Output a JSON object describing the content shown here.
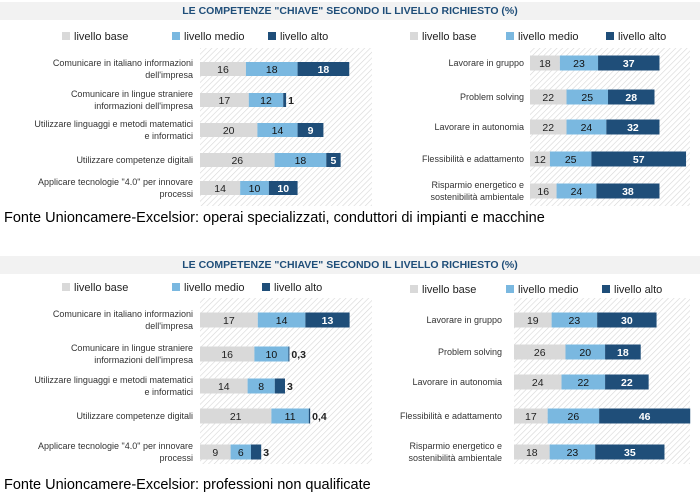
{
  "colors": {
    "base": "#d9d9d9",
    "medio": "#7ab8e0",
    "alto": "#1f4e79",
    "title": "#1f4e79",
    "title_bg": "#f2f2f2"
  },
  "legend_labels": [
    "livello base",
    "livello medio",
    "livello alto"
  ],
  "panels": [
    {
      "title": "LE COMPETENZE \"CHIAVE\" SECONDO IL LIVELLO RICHIESTO (%)",
      "source": "Fonte Unioncamere-Excelsior: operai specializzati, conduttori di impianti e macchine"
    },
    {
      "title": "LE COMPETENZE \"CHIAVE\" SECONDO IL LIVELLO RICHIESTO (%)",
      "source": "Fonte Unioncamere-Excelsior: professioni non qualificate"
    }
  ],
  "chart_data": [
    {
      "type": "bar",
      "orientation": "horizontal",
      "stacked": true,
      "legend": "top",
      "categories": [
        [
          "Comunicare in italiano informazioni",
          "dell'impresa"
        ],
        [
          "Comunicare in lingue straniere",
          "informazioni dell'impresa"
        ],
        [
          "Utilizzare linguaggi e metodi matematici",
          "e informatici"
        ],
        [
          "Utilizzare competenze digitali"
        ],
        [
          "Applicare tecnologie \"4.0\" per innovare",
          "processi"
        ]
      ],
      "series": [
        {
          "name": "livello base",
          "values": [
            16,
            17,
            20,
            26,
            14
          ],
          "labels": [
            "16",
            "17",
            "20",
            "26",
            "14"
          ]
        },
        {
          "name": "livello medio",
          "values": [
            18,
            12,
            14,
            18,
            10
          ],
          "labels": [
            "18",
            "12",
            "14",
            "18",
            "10"
          ]
        },
        {
          "name": "livello alto",
          "values": [
            18,
            1,
            9,
            5,
            10
          ],
          "labels": [
            "18",
            "1",
            "9",
            "5",
            "10"
          ]
        }
      ]
    },
    {
      "type": "bar",
      "orientation": "horizontal",
      "stacked": true,
      "legend": "top",
      "categories": [
        [
          "Lavorare in gruppo"
        ],
        [
          "Problem solving"
        ],
        [
          "Lavorare in autonomia"
        ],
        [
          "Flessibilità e adattamento"
        ],
        [
          "Risparmio energetico e",
          "sostenibilità ambientale"
        ]
      ],
      "series": [
        {
          "name": "livello base",
          "values": [
            18,
            22,
            22,
            12,
            16
          ],
          "labels": [
            "18",
            "22",
            "22",
            "12",
            "16"
          ]
        },
        {
          "name": "livello medio",
          "values": [
            23,
            25,
            24,
            25,
            24
          ],
          "labels": [
            "23",
            "25",
            "24",
            "25",
            "24"
          ]
        },
        {
          "name": "livello alto",
          "values": [
            37,
            28,
            32,
            57,
            38
          ],
          "labels": [
            "37",
            "28",
            "32",
            "57",
            "38"
          ]
        }
      ]
    },
    {
      "type": "bar",
      "orientation": "horizontal",
      "stacked": true,
      "legend": "top",
      "categories": [
        [
          "Comunicare in italiano informazioni",
          "dell'impresa"
        ],
        [
          "Comunicare in lingue straniere",
          "informazioni dell'impresa"
        ],
        [
          "Utilizzare linguaggi e metodi matematici",
          "e informatici"
        ],
        [
          "Utilizzare competenze digitali"
        ],
        [
          "Applicare tecnologie \"4.0\" per innovare",
          "processi"
        ]
      ],
      "series": [
        {
          "name": "livello base",
          "values": [
            17,
            16,
            14,
            21,
            9
          ],
          "labels": [
            "17",
            "16",
            "14",
            "21",
            "9"
          ]
        },
        {
          "name": "livello medio",
          "values": [
            14,
            10,
            8,
            11,
            6
          ],
          "labels": [
            "14",
            "10",
            "8",
            "11",
            "6"
          ]
        },
        {
          "name": "livello alto",
          "values": [
            13,
            0.3,
            3,
            0.4,
            3
          ],
          "labels": [
            "13",
            "0,3",
            "3",
            "0,4",
            "3"
          ]
        }
      ]
    },
    {
      "type": "bar",
      "orientation": "horizontal",
      "stacked": true,
      "legend": "top",
      "categories": [
        [
          "Lavorare in gruppo"
        ],
        [
          "Problem solving"
        ],
        [
          "Lavorare in autonomia"
        ],
        [
          "Flessibilità e adattamento"
        ],
        [
          "Risparmio energetico e",
          "sostenibilità ambientale"
        ]
      ],
      "series": [
        {
          "name": "livello base",
          "values": [
            19,
            26,
            24,
            17,
            18
          ],
          "labels": [
            "19",
            "26",
            "24",
            "17",
            "18"
          ]
        },
        {
          "name": "livello medio",
          "values": [
            23,
            20,
            22,
            26,
            23
          ],
          "labels": [
            "23",
            "20",
            "22",
            "26",
            "23"
          ]
        },
        {
          "name": "livello alto",
          "values": [
            30,
            18,
            22,
            46,
            35
          ],
          "labels": [
            "30",
            "18",
            "22",
            "46",
            "35"
          ]
        }
      ]
    }
  ]
}
